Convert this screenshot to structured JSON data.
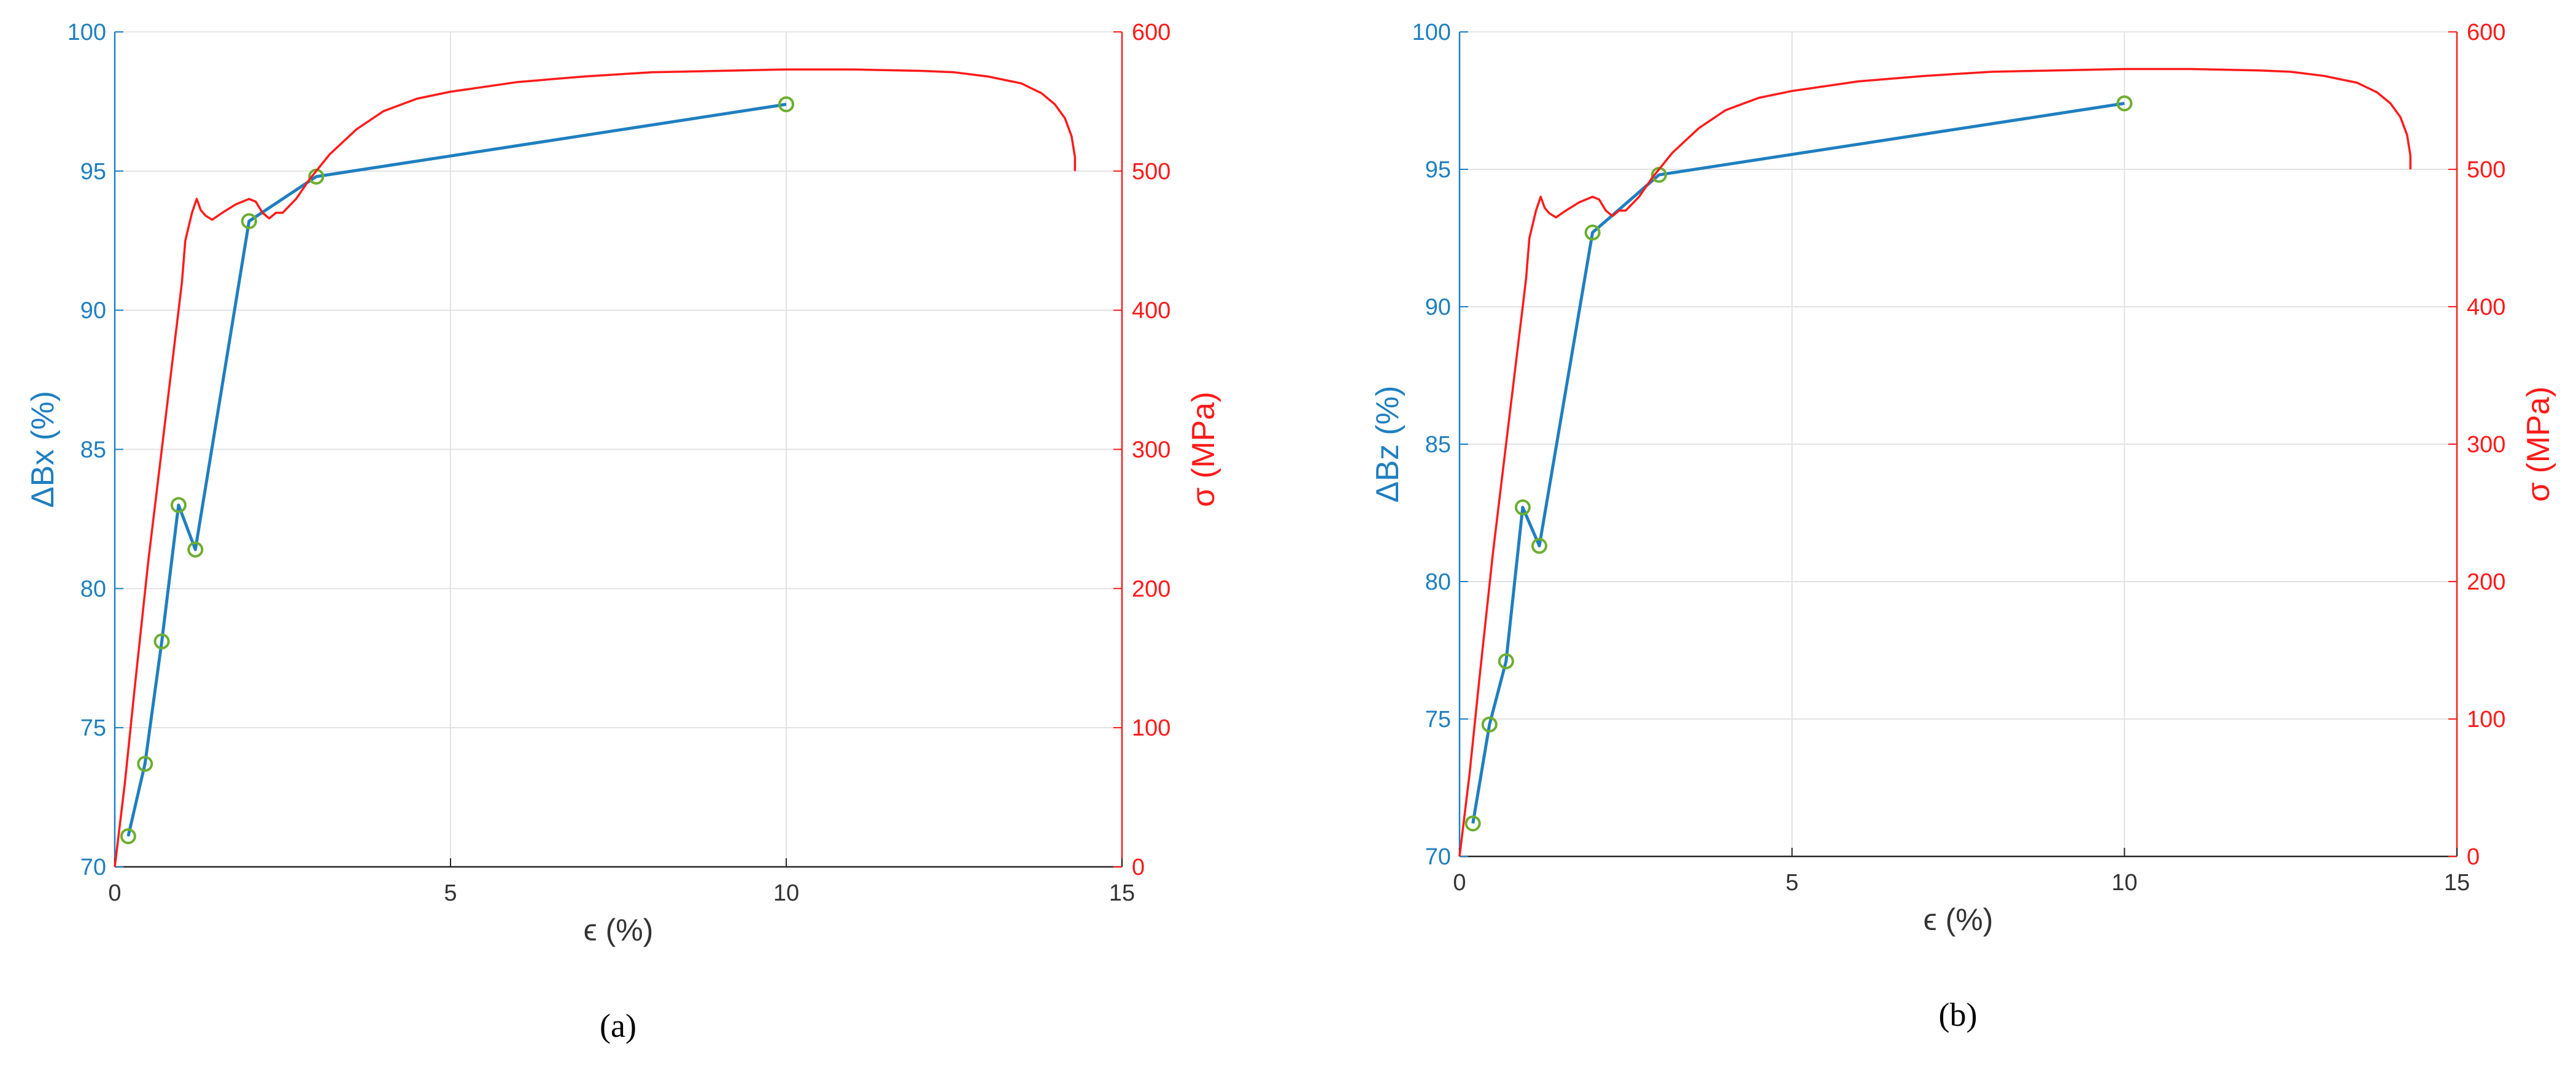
{
  "chart_data": [
    {
      "type": "line",
      "panel_label": "(a)",
      "xlabel": "ϵ (%)",
      "ylabel_left": "ΔBx (%)",
      "ylabel_right": "σ (MPa)",
      "xlim": [
        0,
        15
      ],
      "ylim_left": [
        70,
        100
      ],
      "ylim_right": [
        0,
        600
      ],
      "x_ticks": [
        "0",
        "5",
        "10",
        "15"
      ],
      "y_left_ticks": [
        "70",
        "75",
        "80",
        "85",
        "90",
        "95",
        "100"
      ],
      "y_right_ticks": [
        "0",
        "100",
        "200",
        "300",
        "400",
        "500",
        "600"
      ],
      "grid": true,
      "series": [
        {
          "axis": "left",
          "color": "#1f7fc0",
          "marker_color": "#6cae2f",
          "marker": "circle",
          "x": [
            0.2,
            0.45,
            0.7,
            0.95,
            1.2,
            2.0,
            3.0,
            10.0
          ],
          "y": [
            71.1,
            73.7,
            78.1,
            83.0,
            81.4,
            93.2,
            94.8,
            97.4
          ]
        },
        {
          "axis": "right",
          "color": "#ff1a1a",
          "x": [
            0,
            0.15,
            0.3,
            0.5,
            0.7,
            0.85,
            1.0,
            1.05,
            1.15,
            1.22,
            1.28,
            1.35,
            1.45,
            1.6,
            1.8,
            2.0,
            2.1,
            2.2,
            2.3,
            2.4,
            2.5,
            2.7,
            2.9,
            3.2,
            3.6,
            4.0,
            4.5,
            5.0,
            6.0,
            7.0,
            8.0,
            9.0,
            10.0,
            11.0,
            12.0,
            12.5,
            13.0,
            13.5,
            13.8,
            14.0,
            14.15,
            14.25,
            14.3,
            14.3
          ],
          "y": [
            0,
            60,
            130,
            220,
            300,
            360,
            420,
            450,
            470,
            480,
            472,
            468,
            465,
            470,
            476,
            480,
            478,
            470,
            466,
            470,
            470,
            480,
            494,
            512,
            530,
            543,
            552,
            557,
            564,
            568,
            571,
            572,
            573,
            573,
            572,
            571,
            568,
            563,
            556,
            548,
            538,
            525,
            510,
            500
          ]
        }
      ]
    },
    {
      "type": "line",
      "panel_label": "(b)",
      "xlabel": "ϵ (%)",
      "ylabel_left": "ΔBz (%)",
      "ylabel_right": "σ (MPa)",
      "xlim": [
        0,
        15
      ],
      "ylim_left": [
        70,
        100
      ],
      "ylim_right": [
        0,
        600
      ],
      "x_ticks": [
        "0",
        "5",
        "10",
        "15"
      ],
      "y_left_ticks": [
        "70",
        "75",
        "80",
        "85",
        "90",
        "95",
        "100"
      ],
      "y_right_ticks": [
        "0",
        "100",
        "200",
        "300",
        "400",
        "500",
        "600"
      ],
      "grid": true,
      "series": [
        {
          "axis": "left",
          "color": "#1f7fc0",
          "marker_color": "#6cae2f",
          "marker": "circle",
          "x": [
            0.2,
            0.45,
            0.7,
            0.95,
            1.2,
            2.0,
            3.0,
            10.0
          ],
          "y": [
            71.2,
            74.8,
            77.1,
            82.7,
            81.3,
            92.7,
            94.8,
            97.4
          ]
        },
        {
          "axis": "right",
          "color": "#ff1a1a",
          "x": [
            0,
            0.15,
            0.3,
            0.5,
            0.7,
            0.85,
            1.0,
            1.05,
            1.15,
            1.22,
            1.28,
            1.35,
            1.45,
            1.6,
            1.8,
            2.0,
            2.1,
            2.2,
            2.3,
            2.4,
            2.5,
            2.7,
            2.9,
            3.2,
            3.6,
            4.0,
            4.5,
            5.0,
            6.0,
            7.0,
            8.0,
            9.0,
            10.0,
            11.0,
            12.0,
            12.5,
            13.0,
            13.5,
            13.8,
            14.0,
            14.15,
            14.25,
            14.3,
            14.3
          ],
          "y": [
            0,
            60,
            130,
            220,
            300,
            360,
            420,
            450,
            470,
            480,
            472,
            468,
            465,
            470,
            476,
            480,
            478,
            470,
            466,
            470,
            470,
            480,
            494,
            512,
            530,
            543,
            552,
            557,
            564,
            568,
            571,
            572,
            573,
            573,
            572,
            571,
            568,
            563,
            556,
            548,
            538,
            525,
            510,
            500
          ]
        }
      ]
    }
  ]
}
